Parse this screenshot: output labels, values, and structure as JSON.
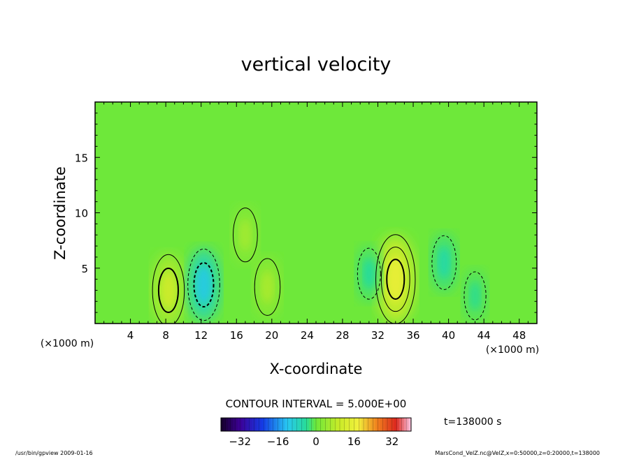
{
  "chart_data": {
    "type": "heatmap",
    "title": "vertical velocity",
    "xlabel": "X-coordinate",
    "ylabel": "Z-coordinate",
    "x_unit_left": "(×1000 m)",
    "x_unit_right": "(×1000 m)",
    "x_ticks": [
      "4",
      "8",
      "12",
      "16",
      "20",
      "24",
      "28",
      "32",
      "36",
      "40",
      "44",
      "48"
    ],
    "y_ticks": [
      "5",
      "10",
      "15"
    ],
    "xlim": [
      0,
      50
    ],
    "ylim": [
      0,
      20
    ],
    "contour_interval_label": "CONTOUR INTERVAL = 5.000E+00",
    "time_label": "t=138000 s",
    "colorbar": {
      "range": [
        -40,
        40
      ],
      "ticks": [
        "−32",
        "−16",
        "0",
        "16",
        "32"
      ]
    },
    "features": [
      {
        "kind": "updraft",
        "x": 8.3,
        "z": 3.0,
        "peak": 12
      },
      {
        "kind": "downdraft",
        "x": 12.3,
        "z": 3.5,
        "peak": -12
      },
      {
        "kind": "updraft",
        "x": 17.0,
        "z": 8.0,
        "peak": 6
      },
      {
        "kind": "updraft",
        "x": 19.5,
        "z": 3.3,
        "peak": 7
      },
      {
        "kind": "updraft",
        "x": 34.0,
        "z": 4.0,
        "peak": 18
      },
      {
        "kind": "downdraft",
        "x": 31.0,
        "z": 4.5,
        "peak": -5
      },
      {
        "kind": "downdraft",
        "x": 39.5,
        "z": 5.5,
        "peak": -6
      },
      {
        "kind": "downdraft",
        "x": 43.0,
        "z": 2.5,
        "peak": -4
      }
    ]
  },
  "footer": {
    "left": "/usr/bin/gpview   2009-01-16",
    "right": "MarsCond_VelZ.nc@VelZ,x=0:50000,z=0:20000,t=138000"
  }
}
